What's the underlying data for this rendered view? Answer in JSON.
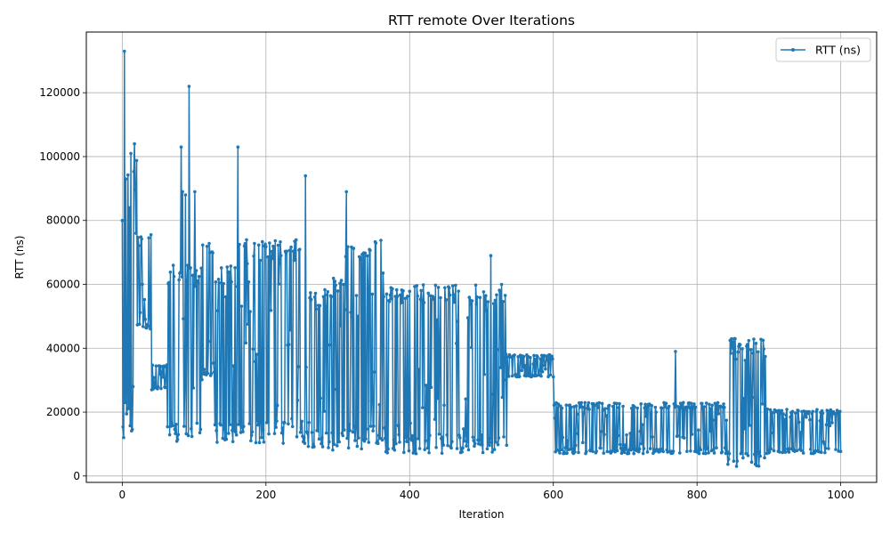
{
  "chart_data": {
    "type": "line",
    "title": "RTT remote Over Iterations",
    "xlabel": "Iteration",
    "ylabel": "RTT (ns)",
    "xlim": [
      -50,
      1050
    ],
    "ylim": [
      -2000,
      139000
    ],
    "xticks": [
      0,
      200,
      400,
      600,
      800,
      1000
    ],
    "yticks": [
      0,
      20000,
      40000,
      60000,
      80000,
      100000,
      120000
    ],
    "grid": true,
    "legend_position": "top-right",
    "series": [
      {
        "name": "RTT (ns)",
        "color": "#1f77b4",
        "marker": "circle",
        "segments": [
          {
            "x_range": [
              0,
              20
            ],
            "low": 12000,
            "high": 104000,
            "peaks": [
              [
                0,
                80000
              ],
              [
                2,
                12000
              ],
              [
                3,
                133000
              ],
              [
                5,
                93000
              ],
              [
                7,
                21000
              ],
              [
                10,
                84000
              ],
              [
                12,
                101000
              ],
              [
                15,
                28000
              ],
              [
                17,
                104000
              ],
              [
                19,
                76000
              ]
            ]
          },
          {
            "x_range": [
              20,
              40
            ],
            "low": 46000,
            "high": 76000
          },
          {
            "x_range": [
              40,
              62
            ],
            "low": 27000,
            "high": 35000
          },
          {
            "x_range": [
              62,
              110
            ],
            "low": 10000,
            "high": 66000,
            "peaks": [
              [
                82,
                103000
              ],
              [
                84,
                89000
              ],
              [
                88,
                88000
              ],
              [
                93,
                122000
              ],
              [
                101,
                89000
              ]
            ]
          },
          {
            "x_range": [
              110,
              128
            ],
            "low": 30000,
            "high": 75000
          },
          {
            "x_range": [
              128,
              160
            ],
            "low": 10000,
            "high": 66000
          },
          {
            "x_range": [
              160,
              255
            ],
            "low": 10000,
            "high": 74000,
            "peaks": [
              [
                161,
                103000
              ],
              [
                255,
                94000
              ]
            ]
          },
          {
            "x_range": [
              255,
              280
            ],
            "low": 9000,
            "high": 58000
          },
          {
            "x_range": [
              280,
              310
            ],
            "low": 8000,
            "high": 62000
          },
          {
            "x_range": [
              310,
              365
            ],
            "low": 8000,
            "high": 74000,
            "peaks": [
              [
                312,
                89000
              ]
            ]
          },
          {
            "x_range": [
              365,
              535
            ],
            "low": 7000,
            "high": 60000,
            "peaks": [
              [
                513,
                69000
              ]
            ]
          },
          {
            "x_range": [
              535,
              600
            ],
            "low": 31000,
            "high": 38000
          },
          {
            "x_range": [
              600,
              840
            ],
            "low": 7000,
            "high": 23000,
            "peaks": [
              [
                770,
                39000
              ]
            ]
          },
          {
            "x_range": [
              840,
              895
            ],
            "low": 3000,
            "high": 43000,
            "peaks": [
              [
                850,
                42000
              ],
              [
                853,
                43000
              ],
              [
                890,
                33000
              ]
            ]
          },
          {
            "x_range": [
              895,
              1000
            ],
            "low": 7000,
            "high": 21000
          }
        ]
      }
    ]
  }
}
